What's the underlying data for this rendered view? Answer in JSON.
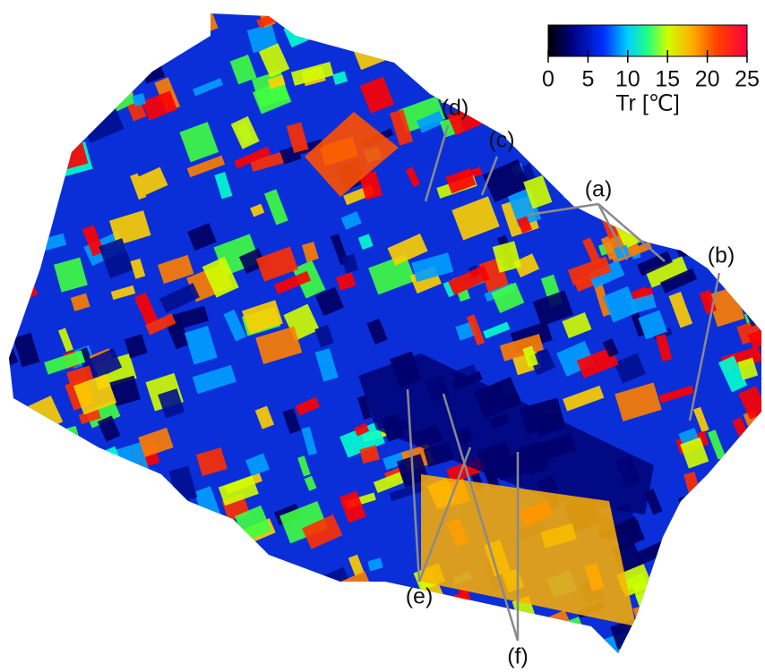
{
  "colorbar": {
    "label": "Tr [℃]",
    "lim": [
      0,
      25
    ],
    "ticks": [
      0,
      5,
      10,
      15,
      20,
      25
    ]
  },
  "annotations": [
    {
      "label": "(a)"
    },
    {
      "label": "(b)"
    },
    {
      "label": "(c)"
    },
    {
      "label": "(d)"
    },
    {
      "label": "(e)"
    },
    {
      "label": "(f)"
    }
  ]
}
